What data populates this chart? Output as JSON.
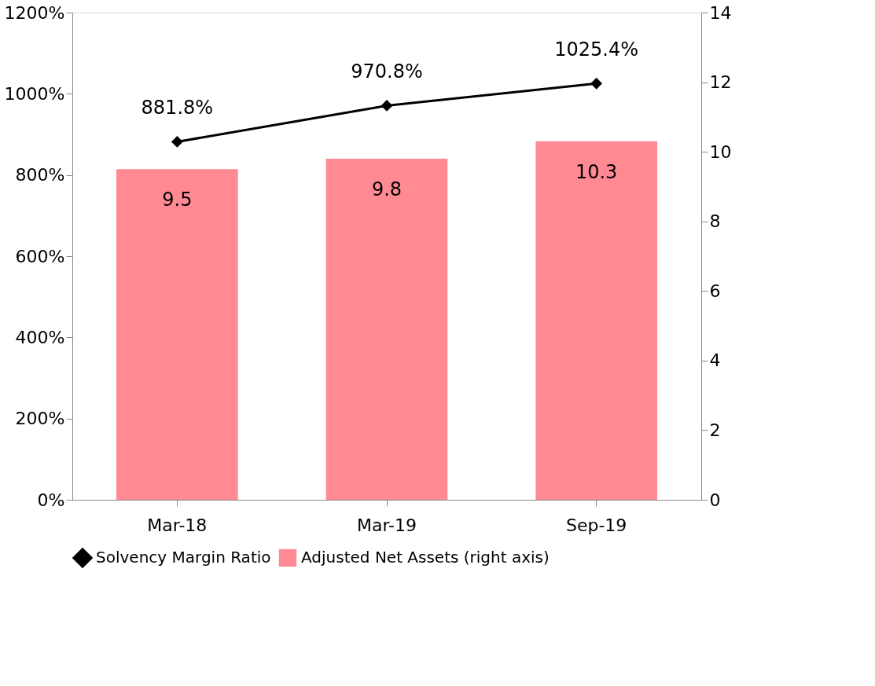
{
  "chart_data": {
    "type": "bar",
    "categories": [
      "Mar-18",
      "Mar-19",
      "Sep-19"
    ],
    "series": [
      {
        "name": "Solvency Margin Ratio",
        "type": "line",
        "color": "#000000",
        "values": [
          881.8,
          970.8,
          1025.4
        ],
        "value_labels": [
          "881.8%",
          "970.8%",
          "1025.4%"
        ],
        "marker": "diamond"
      },
      {
        "name": "Adjusted Net Assets (right axis)",
        "axis": "y2",
        "color": "#ff8a93",
        "values": [
          9.5,
          9.8,
          10.3
        ]
      }
    ],
    "data_labels": true,
    "ylim": [
      0,
      1200
    ],
    "yticks": [
      {
        "value": 0,
        "label": "0%"
      },
      {
        "value": 200,
        "label": "200%"
      },
      {
        "value": 400,
        "label": "400%"
      },
      {
        "value": 600,
        "label": "600%"
      },
      {
        "value": 800,
        "label": "800%"
      },
      {
        "value": 1000,
        "label": "1000%"
      },
      {
        "value": 1200,
        "label": "1200%"
      }
    ],
    "y2lim": [
      0,
      14
    ],
    "y2ticks": [
      0,
      2,
      4,
      6,
      8,
      10,
      12,
      14
    ],
    "grid": false,
    "legend": "bottom"
  }
}
